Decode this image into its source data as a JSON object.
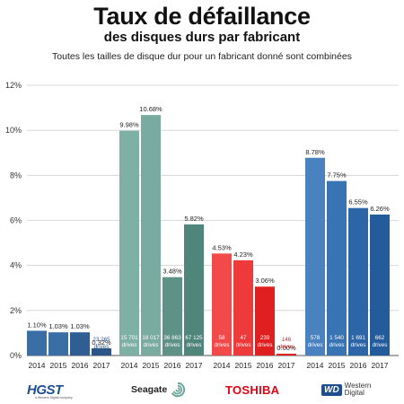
{
  "header": {
    "title": "Taux de défaillance",
    "subtitle": "des disques durs par fabricant",
    "note": "Toutes les tailles de disque dur pour un fabricant donné sont combinées"
  },
  "chart_data": {
    "type": "bar",
    "ylim": [
      0,
      12
    ],
    "yticks": [
      "0%",
      "2%",
      "4%",
      "6%",
      "8%",
      "10%",
      "12%"
    ],
    "grid": true,
    "manufacturers": [
      {
        "name": "HGST",
        "colors": [
          "#3a6fa5",
          "#3a6fa5",
          "#2f5e92",
          "#2a5586"
        ],
        "years": [
          "2014",
          "2015",
          "2016",
          "2017"
        ],
        "values": [
          1.1,
          1.03,
          1.03,
          0.32
        ],
        "value_labels": [
          "1.10%",
          "1.03%",
          "1.03%",
          "0.32%"
        ],
        "drives": [
          "13 447",
          "23 052",
          "22 731",
          "23 265"
        ]
      },
      {
        "name": "Seagate",
        "colors": [
          "#7fb0a6",
          "#79aba1",
          "#5f9287",
          "#4f857a"
        ],
        "years": [
          "2014",
          "2015",
          "2016",
          "2017"
        ],
        "values": [
          9.98,
          10.68,
          3.48,
          5.82
        ],
        "value_labels": [
          "9.98%",
          "10.68%",
          "3.48%",
          "5.82%"
        ],
        "drives": [
          "15 701",
          "18 017",
          "36 863",
          "67 125"
        ]
      },
      {
        "name": "Toshiba",
        "colors": [
          "#f24a4a",
          "#ee3a3a",
          "#e02020",
          "#e02020"
        ],
        "years": [
          "2014",
          "2015",
          "2016",
          "2017"
        ],
        "values": [
          4.53,
          4.23,
          3.06,
          0.0
        ],
        "value_labels": [
          "4.53%",
          "4.23%",
          "3.06%",
          "0.00%"
        ],
        "drives": [
          "58",
          "47",
          "239",
          "146"
        ]
      },
      {
        "name": "Western Digital",
        "colors": [
          "#4a82c0",
          "#3873b3",
          "#2d66a7",
          "#235b9b"
        ],
        "years": [
          "2014",
          "2015",
          "2016",
          "2017"
        ],
        "values": [
          8.78,
          7.75,
          6.55,
          6.26
        ],
        "value_labels": [
          "8.78%",
          "7.75%",
          "6.55%",
          "6.26%"
        ],
        "drives": [
          "578",
          "1 540",
          "1 691",
          "662"
        ]
      }
    ],
    "drives_word": "drives"
  },
  "logos": {
    "hgst": "HGST",
    "hgst_sub": "a Western Digital company",
    "seagate": "Seagate",
    "toshiba": "TOSHIBA",
    "wd_badge": "WD",
    "wd_line1": "Western",
    "wd_line2": "Digital"
  }
}
